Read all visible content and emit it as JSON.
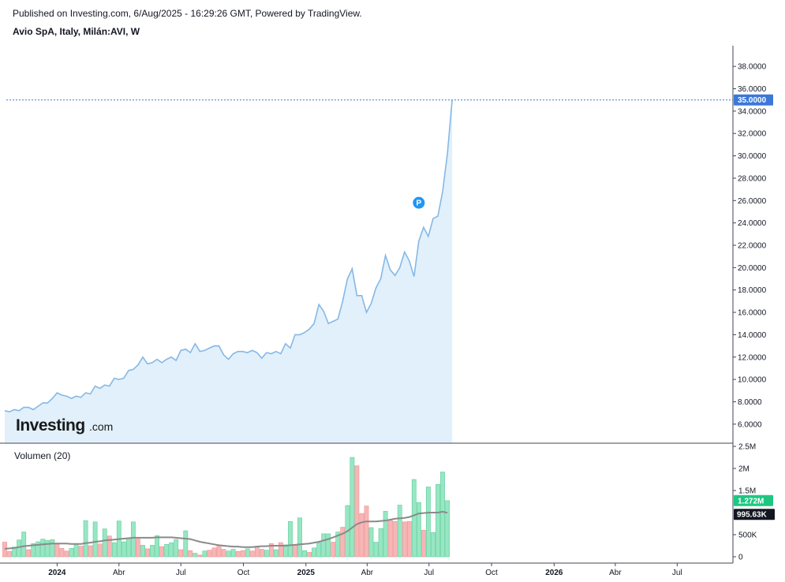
{
  "header": {
    "published": "Published on Investing.com, 6/Aug/2025 - 16:29:26 GMT, Powered by TradingView.",
    "symbol": "Avio SpA, Italy, Milán:AVI, W"
  },
  "logo": {
    "main": "Investing",
    "sub": ".com"
  },
  "colors": {
    "line": "#85b8e6",
    "area": "#e1f0fa",
    "price_badge": "#3c78d8",
    "vol_up": "#98e6c3",
    "vol_down": "#f7b6b6",
    "vol_ma": "#8a8a8a",
    "vol_badge": "#1ec781",
    "ma_badge": "#131722"
  },
  "chart_data": [
    {
      "type": "area",
      "y_range": [
        5.0,
        39.0
      ],
      "y_ticks": [
        "38.0000",
        "36.0000",
        "34.0000",
        "32.0000",
        "30.0000",
        "28.0000",
        "26.0000",
        "24.0000",
        "22.0000",
        "20.0000",
        "18.0000",
        "16.0000",
        "14.0000",
        "12.0000",
        "10.0000",
        "8.0000",
        "6.0000"
      ],
      "y_tick_values": [
        38,
        36,
        34,
        32,
        30,
        28,
        26,
        24,
        22,
        20,
        18,
        16,
        14,
        12,
        10,
        8,
        6
      ],
      "x_ticks": [
        {
          "label": "2024",
          "date": "2024-01-01",
          "bold": true
        },
        {
          "label": "Abr",
          "date": "2024-04-01",
          "bold": false
        },
        {
          "label": "Jul",
          "date": "2024-07-01",
          "bold": false
        },
        {
          "label": "Oct",
          "date": "2024-10-01",
          "bold": false
        },
        {
          "label": "2025",
          "date": "2025-01-01",
          "bold": true
        },
        {
          "label": "Abr",
          "date": "2025-04-01",
          "bold": false
        },
        {
          "label": "Jul",
          "date": "2025-07-01",
          "bold": false
        },
        {
          "label": "Oct",
          "date": "2025-10-01",
          "bold": false
        },
        {
          "label": "2026",
          "date": "2026-01-01",
          "bold": true
        },
        {
          "label": "Abr",
          "date": "2026-04-01",
          "bold": false
        },
        {
          "label": "Jul",
          "date": "2026-07-01",
          "bold": false
        }
      ],
      "last_price_label": "35.0000",
      "last_price": 35.0,
      "marker_label": "P",
      "marker_date": "2025-06-16",
      "marker_value": 25.8,
      "series": [
        {
          "x": [
            "2023-10-16",
            "2023-10-23",
            "2023-10-30",
            "2023-11-06",
            "2023-11-13",
            "2023-11-20",
            "2023-11-27",
            "2023-12-04",
            "2023-12-11",
            "2023-12-18",
            "2023-12-25",
            "2024-01-01",
            "2024-01-08",
            "2024-01-15",
            "2024-01-22",
            "2024-01-29",
            "2024-02-05",
            "2024-02-12",
            "2024-02-19",
            "2024-02-26",
            "2024-03-04",
            "2024-03-11",
            "2024-03-18",
            "2024-03-25",
            "2024-04-01",
            "2024-04-08",
            "2024-04-15",
            "2024-04-22",
            "2024-04-29",
            "2024-05-06",
            "2024-05-13",
            "2024-05-20",
            "2024-05-27",
            "2024-06-03",
            "2024-06-10",
            "2024-06-17",
            "2024-06-24",
            "2024-07-01",
            "2024-07-08",
            "2024-07-15",
            "2024-07-22",
            "2024-07-29",
            "2024-08-05",
            "2024-08-12",
            "2024-08-19",
            "2024-08-26",
            "2024-09-02",
            "2024-09-09",
            "2024-09-16",
            "2024-09-23",
            "2024-09-30",
            "2024-10-07",
            "2024-10-14",
            "2024-10-21",
            "2024-10-28",
            "2024-11-04",
            "2024-11-11",
            "2024-11-18",
            "2024-11-25",
            "2024-12-02",
            "2024-12-09",
            "2024-12-16",
            "2024-12-23",
            "2024-12-30",
            "2025-01-06",
            "2025-01-13",
            "2025-01-20",
            "2025-01-27",
            "2025-02-03",
            "2025-02-10",
            "2025-02-17",
            "2025-02-24",
            "2025-03-03",
            "2025-03-10",
            "2025-03-17",
            "2025-03-24",
            "2025-03-31",
            "2025-04-07",
            "2025-04-14",
            "2025-04-21",
            "2025-04-28",
            "2025-05-05",
            "2025-05-12",
            "2025-05-19",
            "2025-05-26",
            "2025-06-02",
            "2025-06-09",
            "2025-06-16",
            "2025-06-23",
            "2025-06-30",
            "2025-07-07",
            "2025-07-14",
            "2025-07-21",
            "2025-07-28",
            "2025-08-04"
          ],
          "y": [
            7.2,
            7.1,
            7.3,
            7.2,
            7.5,
            7.5,
            7.3,
            7.6,
            7.9,
            7.9,
            8.3,
            8.8,
            8.6,
            8.5,
            8.3,
            8.5,
            8.4,
            8.8,
            8.7,
            9.4,
            9.2,
            9.5,
            9.4,
            10.1,
            10.0,
            10.1,
            10.8,
            10.9,
            11.3,
            12.0,
            11.4,
            11.5,
            11.8,
            11.5,
            11.8,
            12.0,
            11.7,
            12.6,
            12.7,
            12.4,
            13.2,
            12.5,
            12.6,
            12.8,
            13.0,
            13.0,
            12.2,
            11.8,
            12.3,
            12.5,
            12.5,
            12.4,
            12.6,
            12.4,
            11.9,
            12.4,
            12.3,
            12.5,
            12.3,
            13.2,
            12.8,
            14.0,
            14.0,
            14.2,
            14.5,
            15.0,
            16.7,
            16.1,
            15.0,
            15.2,
            15.4,
            17.0,
            19.0,
            19.9,
            17.5,
            17.5,
            16.0,
            16.8,
            18.2,
            19.0,
            21.1,
            19.8,
            19.3,
            20.0,
            21.4,
            20.6,
            19.2,
            22.4,
            23.6,
            22.8,
            24.4,
            24.6,
            26.8,
            30.2,
            35.0
          ]
        }
      ]
    },
    {
      "type": "bar",
      "title": "Volumen (20)",
      "y_range": [
        0,
        2500000
      ],
      "y_ticks": [
        "2.5M",
        "2M",
        "1.5M",
        "500K",
        "0"
      ],
      "y_tick_values": [
        2500000,
        2000000,
        1500000,
        500000,
        0
      ],
      "last_volume_label": "1.272M",
      "last_volume": 1272000,
      "ma_label": "995.63K",
      "ma_value": 995630,
      "series": [
        {
          "name": "volume",
          "values": [
            330000,
            120000,
            220000,
            380000,
            560000,
            160000,
            300000,
            340000,
            400000,
            370000,
            390000,
            300000,
            190000,
            130000,
            190000,
            280000,
            240000,
            820000,
            250000,
            790000,
            290000,
            630000,
            470000,
            320000,
            810000,
            340000,
            420000,
            790000,
            400000,
            260000,
            180000,
            260000,
            480000,
            230000,
            280000,
            320000,
            390000,
            160000,
            590000,
            140000,
            80000,
            40000,
            130000,
            150000,
            200000,
            270000,
            170000,
            130000,
            170000,
            120000,
            140000,
            180000,
            130000,
            240000,
            170000,
            150000,
            300000,
            160000,
            320000,
            270000,
            800000,
            280000,
            880000,
            140000,
            100000,
            200000,
            320000,
            520000,
            520000,
            330000,
            560000,
            670000,
            1160000,
            2250000,
            2060000,
            980000,
            1150000,
            660000,
            330000,
            640000,
            1030000,
            830000,
            800000,
            1170000,
            790000,
            800000,
            1750000,
            1230000,
            600000,
            1580000,
            550000,
            1640000,
            1920000,
            1272000
          ],
          "up": [
            false,
            false,
            true,
            true,
            true,
            false,
            true,
            true,
            true,
            true,
            true,
            false,
            false,
            false,
            true,
            true,
            false,
            true,
            false,
            true,
            false,
            true,
            false,
            true,
            true,
            true,
            true,
            true,
            false,
            true,
            false,
            true,
            true,
            false,
            true,
            true,
            true,
            false,
            true,
            false,
            true,
            false,
            true,
            false,
            false,
            false,
            false,
            true,
            true,
            false,
            false,
            true,
            false,
            false,
            false,
            true,
            false,
            true,
            false,
            true,
            true,
            false,
            true,
            true,
            false,
            true,
            true,
            true,
            true,
            false,
            true,
            false,
            true,
            true,
            false,
            false,
            false,
            true,
            true,
            true,
            true,
            false,
            false,
            true,
            false,
            false,
            true,
            true,
            false,
            true,
            true,
            true,
            true,
            true
          ]
        },
        {
          "name": "ma",
          "values": [
            180000,
            190000,
            200000,
            220000,
            240000,
            250000,
            260000,
            270000,
            280000,
            290000,
            300000,
            300000,
            300000,
            300000,
            290000,
            290000,
            290000,
            310000,
            320000,
            340000,
            350000,
            370000,
            380000,
            390000,
            400000,
            410000,
            420000,
            430000,
            430000,
            430000,
            430000,
            430000,
            440000,
            440000,
            440000,
            440000,
            430000,
            420000,
            410000,
            400000,
            370000,
            340000,
            320000,
            300000,
            280000,
            260000,
            250000,
            240000,
            230000,
            230000,
            220000,
            220000,
            220000,
            230000,
            240000,
            240000,
            250000,
            250000,
            250000,
            250000,
            260000,
            270000,
            280000,
            290000,
            300000,
            320000,
            340000,
            370000,
            400000,
            440000,
            480000,
            520000,
            580000,
            660000,
            740000,
            780000,
            800000,
            800000,
            800000,
            810000,
            820000,
            840000,
            860000,
            870000,
            880000,
            900000,
            940000,
            980000,
            990000,
            1000000,
            1000000,
            1000000,
            1020000,
            995630
          ]
        }
      ]
    }
  ]
}
